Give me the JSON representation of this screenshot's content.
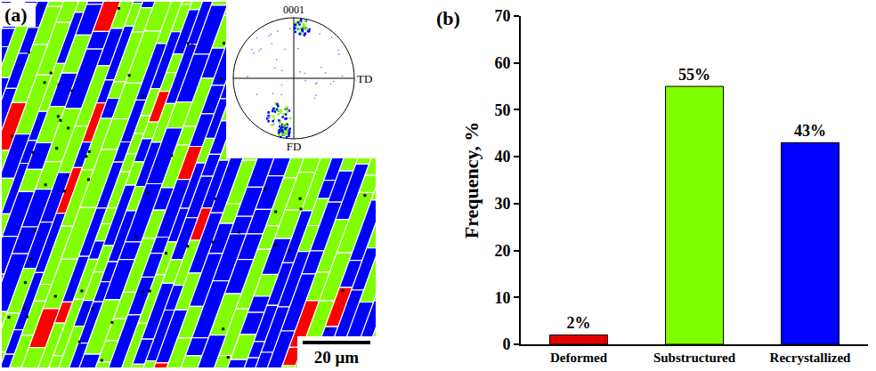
{
  "chart_data": {
    "type": "bar",
    "panel_label": "(b)",
    "y_label": "Frequency, %",
    "categories": [
      "Deformed",
      "Substructured",
      "Recrystallized"
    ],
    "values": [
      2,
      55,
      43
    ],
    "value_labels": [
      "2%",
      "55%",
      "43%"
    ],
    "colors": [
      "#e00000",
      "#80ff00",
      "#0000ff"
    ],
    "ylim": [
      0,
      70
    ],
    "yticks": [
      0,
      10,
      20,
      30,
      40,
      50,
      60,
      70
    ],
    "data_labels": true,
    "grid": false
  },
  "image_panel": {
    "panel_label": "(a)",
    "inset": {
      "title": "0001",
      "axis_labels": [
        "TD",
        "FD"
      ]
    },
    "scale_bar": "20 μm"
  }
}
